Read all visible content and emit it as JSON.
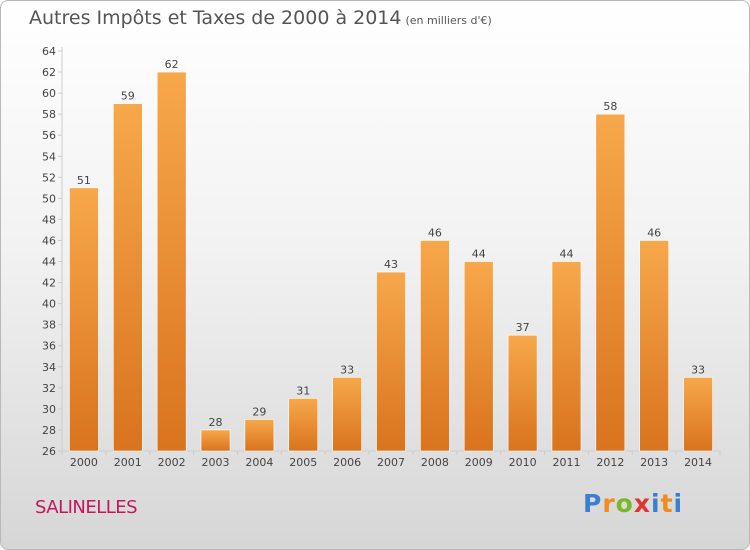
{
  "header": {
    "title": "Autres Impôts et Taxes de 2000 à 2014",
    "unit": "(en milliers d'€)"
  },
  "footer": {
    "town": "SALINELLES",
    "logo_letters": [
      "P",
      "r",
      "o",
      "x",
      "i",
      "t",
      "i"
    ]
  },
  "chart_data": {
    "type": "bar",
    "title": "Autres Impôts et Taxes de 2000 à 2014",
    "subtitle": "(en milliers d'€)",
    "xlabel": "",
    "ylabel": "",
    "categories": [
      "2000",
      "2001",
      "2002",
      "2003",
      "2004",
      "2005",
      "2006",
      "2007",
      "2008",
      "2009",
      "2010",
      "2011",
      "2012",
      "2013",
      "2014"
    ],
    "values": [
      51,
      59,
      62,
      28,
      29,
      31,
      33,
      43,
      46,
      44,
      37,
      44,
      58,
      46,
      33
    ],
    "ylim": [
      26,
      64
    ],
    "yticks": [
      26,
      28,
      30,
      32,
      34,
      36,
      38,
      40,
      42,
      44,
      46,
      48,
      50,
      52,
      54,
      56,
      58,
      60,
      62,
      64
    ],
    "grid": false,
    "legend": "none",
    "colors": {
      "bar_light": "#f7a84b",
      "bar_dark": "#d9731e",
      "tick_text": "#444444",
      "axis": "#cccccc"
    }
  }
}
